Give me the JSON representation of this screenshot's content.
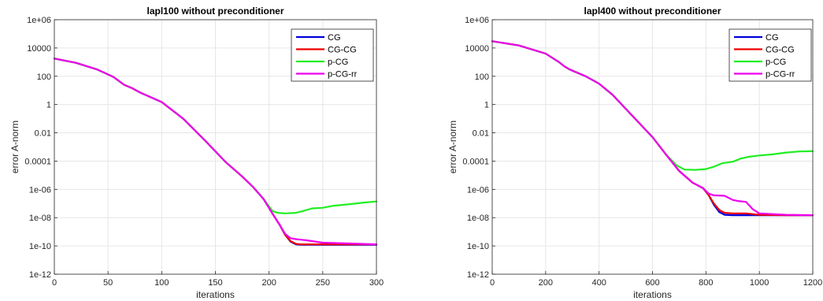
{
  "chart_data": [
    {
      "type": "line",
      "title": "lapl100 without preconditioner",
      "xlabel": "iterations",
      "ylabel": "error A-norm",
      "xlim": [
        0,
        300
      ],
      "ylim": [
        1e-12,
        1000000.0
      ],
      "yscale": "log",
      "grid": true,
      "legend_position": "top-right",
      "x_ticks": [
        0,
        50,
        100,
        150,
        200,
        250,
        300
      ],
      "y_ticks": [
        1e-12,
        1e-10,
        1e-08,
        1e-06,
        0.0001,
        0.01,
        1,
        100,
        10000,
        1000000.0
      ],
      "x_tick_labels": [
        "0",
        "50",
        "100",
        "150",
        "200",
        "250",
        "300"
      ],
      "y_tick_labels": [
        "1e-12",
        "1e-10",
        "1e-08",
        "1e-06",
        "0.0001",
        "0.01",
        "1",
        "100",
        "10000",
        "1e+06"
      ],
      "series": [
        {
          "name": "CG",
          "color": "#0000dd",
          "x": [
            0,
            20,
            40,
            55,
            65,
            72,
            80,
            100,
            120,
            140,
            160,
            175,
            185,
            195,
            203,
            210,
            215,
            220,
            225,
            230,
            250,
            275,
            300
          ],
          "y": [
            1800,
            900,
            300,
            90,
            25,
            15,
            7,
            1.5,
            0.1,
            0.003,
            8e-05,
            8e-06,
            1.5e-06,
            2e-07,
            2e-08,
            3e-09,
            6e-10,
            2e-10,
            1.3e-10,
            1.2e-10,
            1.2e-10,
            1.2e-10,
            1.2e-10
          ]
        },
        {
          "name": "CG-CG",
          "color": "#ee0000",
          "x": [
            0,
            20,
            40,
            55,
            65,
            72,
            80,
            100,
            120,
            140,
            160,
            175,
            185,
            195,
            203,
            210,
            215,
            220,
            225,
            230,
            250,
            275,
            300
          ],
          "y": [
            1800,
            900,
            300,
            90,
            25,
            15,
            7,
            1.5,
            0.1,
            0.003,
            8e-05,
            8e-06,
            1.5e-06,
            2e-07,
            2e-08,
            3e-09,
            6e-10,
            2.2e-10,
            1.4e-10,
            1.3e-10,
            1.3e-10,
            1.3e-10,
            1.3e-10
          ]
        },
        {
          "name": "p-CG",
          "color": "#22ee22",
          "x": [
            0,
            20,
            40,
            55,
            65,
            72,
            80,
            100,
            120,
            140,
            160,
            175,
            185,
            195,
            203,
            208,
            215,
            225,
            232,
            240,
            250,
            260,
            275,
            290,
            300
          ],
          "y": [
            1800,
            900,
            300,
            90,
            25,
            15,
            7,
            1.5,
            0.1,
            0.003,
            8e-05,
            8e-06,
            1.5e-06,
            2e-07,
            3e-08,
            2.2e-08,
            2e-08,
            2.2e-08,
            3e-08,
            4.5e-08,
            5e-08,
            7e-08,
            9e-08,
            1.2e-07,
            1.4e-07
          ]
        },
        {
          "name": "p-CG-rr",
          "color": "#ee00ee",
          "x": [
            0,
            20,
            40,
            55,
            65,
            72,
            80,
            100,
            120,
            140,
            160,
            175,
            185,
            195,
            203,
            210,
            215,
            220,
            225,
            235,
            250,
            275,
            300
          ],
          "y": [
            1800,
            900,
            300,
            90,
            25,
            15,
            7,
            1.5,
            0.1,
            0.003,
            8e-05,
            8e-06,
            1.5e-06,
            2e-07,
            2e-08,
            3e-09,
            7e-10,
            3.5e-10,
            3e-10,
            2.5e-10,
            1.7e-10,
            1.5e-10,
            1.3e-10
          ]
        }
      ]
    },
    {
      "type": "line",
      "title": "lapl400 without preconditioner",
      "xlabel": "iterations",
      "ylabel": "error A-norm",
      "xlim": [
        0,
        1200
      ],
      "ylim": [
        1e-12,
        1000000.0
      ],
      "yscale": "log",
      "grid": true,
      "legend_position": "top-right",
      "x_ticks": [
        0,
        200,
        400,
        600,
        800,
        1000,
        1200
      ],
      "y_ticks": [
        1e-12,
        1e-10,
        1e-08,
        1e-06,
        0.0001,
        0.01,
        1,
        100,
        10000,
        1000000.0
      ],
      "x_tick_labels": [
        "0",
        "200",
        "400",
        "600",
        "800",
        "1000",
        "1200"
      ],
      "y_tick_labels": [
        "1e-12",
        "1e-10",
        "1e-08",
        "1e-06",
        "0.0001",
        "0.01",
        "1",
        "100",
        "10000",
        "1e+06"
      ],
      "series": [
        {
          "name": "CG",
          "color": "#0000dd",
          "x": [
            0,
            100,
            200,
            250,
            270,
            290,
            350,
            400,
            450,
            500,
            550,
            600,
            650,
            700,
            750,
            790,
            810,
            830,
            850,
            870,
            900,
            1000,
            1100,
            1200
          ],
          "y": [
            30000,
            15000,
            4000,
            1000,
            500,
            300,
            100,
            30,
            5,
            0.5,
            0.05,
            0.005,
            0.0003,
            2e-05,
            3e-06,
            1.2e-06,
            4e-07,
            8e-08,
            2.5e-08,
            1.6e-08,
            1.5e-08,
            1.5e-08,
            1.5e-08,
            1.5e-08
          ]
        },
        {
          "name": "CG-CG",
          "color": "#ee0000",
          "x": [
            0,
            100,
            200,
            250,
            270,
            290,
            350,
            400,
            450,
            500,
            550,
            600,
            650,
            700,
            750,
            790,
            810,
            830,
            850,
            870,
            900,
            950,
            1000,
            1100,
            1200
          ],
          "y": [
            30000,
            15000,
            4000,
            1000,
            500,
            300,
            100,
            30,
            5,
            0.5,
            0.05,
            0.005,
            0.0003,
            2e-05,
            3e-06,
            1.2e-06,
            4e-07,
            1e-07,
            3.5e-08,
            2.2e-08,
            2e-08,
            2e-08,
            1.6e-08,
            1.5e-08,
            1.5e-08
          ]
        },
        {
          "name": "p-CG",
          "color": "#22ee22",
          "x": [
            0,
            100,
            200,
            250,
            270,
            290,
            350,
            400,
            450,
            500,
            550,
            600,
            650,
            690,
            720,
            760,
            800,
            830,
            860,
            900,
            930,
            960,
            1000,
            1050,
            1100,
            1150,
            1200
          ],
          "y": [
            30000,
            15000,
            4000,
            1000,
            500,
            300,
            100,
            30,
            5,
            0.5,
            0.05,
            0.005,
            0.0003,
            5e-05,
            2.5e-05,
            2.4e-05,
            2.7e-05,
            4e-05,
            7e-05,
            9e-05,
            0.00015,
            0.0002,
            0.00025,
            0.0003,
            0.0004,
            0.00048,
            0.0005
          ]
        },
        {
          "name": "p-CG-rr",
          "color": "#ee00ee",
          "x": [
            0,
            100,
            200,
            250,
            270,
            290,
            350,
            400,
            450,
            500,
            550,
            600,
            650,
            700,
            750,
            790,
            810,
            830,
            870,
            900,
            920,
            950,
            975,
            1000,
            1100,
            1200
          ],
          "y": [
            30000,
            15000,
            4000,
            1000,
            500,
            300,
            100,
            30,
            5,
            0.5,
            0.05,
            0.005,
            0.0003,
            2e-05,
            3e-06,
            1.2e-06,
            5e-07,
            3.8e-07,
            3.5e-07,
            1.8e-07,
            1.5e-07,
            1.3e-07,
            4e-08,
            2e-08,
            1.6e-08,
            1.5e-08
          ]
        }
      ]
    }
  ]
}
